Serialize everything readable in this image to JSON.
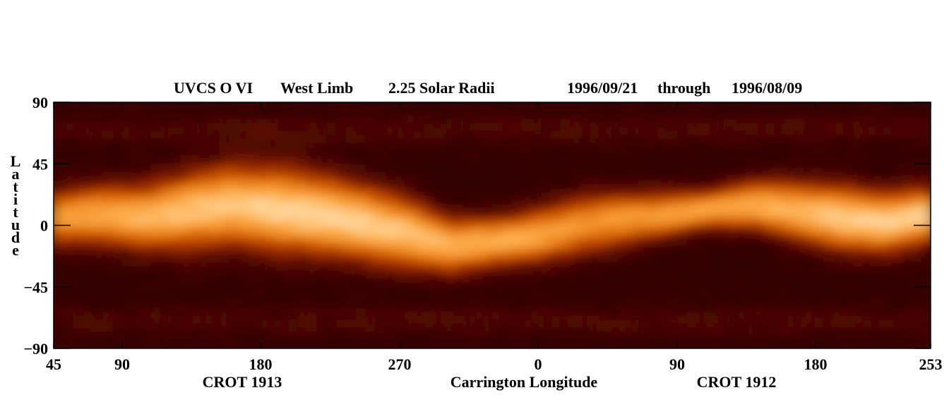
{
  "header": {
    "instrument": "UVCS O VI",
    "limb": "West Limb",
    "height": "2.25 Solar Radii",
    "date_start": "1996/09/21",
    "through": "through",
    "date_end": "1996/08/09"
  },
  "chart_data": {
    "type": "heatmap",
    "title": "UVCS O VI    West Limb      2.25 Solar Radii              1996/09/21   through   1996/08/09",
    "xlabel": "Carrington Longitude",
    "ylabel": "Latitude",
    "ylabel_letters": [
      "L",
      "a",
      "t",
      "i",
      "t",
      "u",
      "d",
      "e"
    ],
    "xlim_labels": [
      "45",
      "253"
    ],
    "x_ticks": [
      "45",
      "90",
      "180",
      "270",
      "0",
      "90",
      "180",
      "253"
    ],
    "y_ticks": [
      "90",
      "45",
      "0",
      "−45",
      "−90"
    ],
    "ylim": [
      -90,
      90
    ],
    "rotation_labels": [
      "CROT 1913",
      "CROT 1912"
    ],
    "colormap": [
      "#2a0000",
      "#5a0a00",
      "#9a2a00",
      "#d05a00",
      "#f08a20",
      "#ffb050",
      "#ffe0b0"
    ],
    "band_center_lat": [
      5,
      8,
      6,
      10,
      15,
      12,
      8,
      2,
      -5,
      -15,
      -12,
      -8,
      0,
      5,
      8,
      12,
      15,
      10,
      5,
      2,
      8
    ],
    "band_halfwidth_lat": [
      22,
      24,
      26,
      30,
      32,
      34,
      32,
      30,
      28,
      22,
      20,
      22,
      24,
      22,
      18,
      16,
      20,
      24,
      26,
      24,
      22
    ],
    "band_peak_intensity": [
      0.75,
      0.8,
      0.85,
      0.9,
      0.92,
      0.95,
      0.97,
      0.95,
      0.9,
      0.85,
      0.82,
      0.78,
      0.7,
      0.72,
      0.75,
      0.78,
      0.8,
      0.85,
      0.92,
      0.95,
      0.93
    ]
  }
}
